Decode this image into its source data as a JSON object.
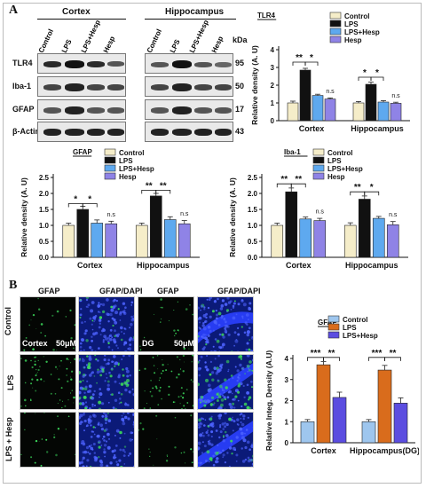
{
  "panel_a_label": "A",
  "panel_b_label": "B",
  "blot": {
    "region_cortex": "Cortex",
    "region_hippo": "Hippocampus",
    "kda_label": "kDa",
    "lanes": [
      "Control",
      "LPS",
      "LPS+Hesp",
      "Hesp"
    ],
    "proteins": [
      "TLR4",
      "Iba-1",
      "GFAP",
      "β-Actin"
    ],
    "sizes": [
      "95",
      "50",
      "17",
      "43"
    ]
  },
  "micro": {
    "col_headers": [
      "GFAP",
      "GFAP/DAPI",
      "GFAP",
      "GFAP/DAPI"
    ],
    "row_labels": [
      "Control",
      "LPS",
      "LPS + Hesp"
    ],
    "cortex_label": "Cortex",
    "dg_label": "DG",
    "scale_1": "50μM",
    "scale_2": "50μM"
  },
  "chart_data": [
    {
      "type": "bar",
      "title": "TLR4",
      "ylabel": "Relative density (A. U)",
      "categories": [
        "Cortex",
        "Hippocampus"
      ],
      "ylim": [
        0,
        4
      ],
      "yticks": [
        "0",
        "1",
        "2",
        "3",
        "4"
      ],
      "series": [
        {
          "name": "Control",
          "color": "#f5edc9",
          "values": [
            1.0,
            1.0
          ],
          "err": [
            0.1,
            0.08
          ]
        },
        {
          "name": "LPS",
          "color": "#111111",
          "values": [
            2.85,
            2.05
          ],
          "err": [
            0.1,
            0.12
          ]
        },
        {
          "name": "LPS+Hesp",
          "color": "#5ea9ef",
          "values": [
            1.42,
            1.05
          ],
          "err": [
            0.07,
            0.08
          ]
        },
        {
          "name": "Hesp",
          "color": "#8f83e6",
          "values": [
            1.22,
            0.98
          ],
          "err": [
            0.06,
            0.06
          ]
        }
      ],
      "annotations": [
        {
          "text": "**",
          "cat": 0,
          "a": 0,
          "b": 1,
          "level": 3.3
        },
        {
          "text": "*",
          "cat": 0,
          "a": 1,
          "b": 2,
          "level": 3.3
        },
        {
          "text": "n.s",
          "cat": 0,
          "a": 3,
          "b": 3,
          "level": 1.45
        },
        {
          "text": "*",
          "cat": 1,
          "a": 0,
          "b": 1,
          "level": 2.45
        },
        {
          "text": "*",
          "cat": 1,
          "a": 1,
          "b": 2,
          "level": 2.45
        },
        {
          "text": "n.s",
          "cat": 1,
          "a": 3,
          "b": 3,
          "level": 1.2
        }
      ]
    },
    {
      "type": "bar",
      "title": "GFAP",
      "ylabel": "Relative density (A. U)",
      "categories": [
        "Cortex",
        "Hippocampus"
      ],
      "ylim": [
        0,
        2.5
      ],
      "yticks": [
        "0.0",
        "0.5",
        "1.0",
        "1.5",
        "2.0",
        "2.5"
      ],
      "series": [
        {
          "name": "Control",
          "color": "#f5edc9",
          "values": [
            1.0,
            1.0
          ],
          "err": [
            0.07,
            0.07
          ]
        },
        {
          "name": "LPS",
          "color": "#111111",
          "values": [
            1.5,
            1.92
          ],
          "err": [
            0.1,
            0.08
          ]
        },
        {
          "name": "LPS+Hesp",
          "color": "#5ea9ef",
          "values": [
            1.07,
            1.18
          ],
          "err": [
            0.1,
            0.09
          ]
        },
        {
          "name": "Hesp",
          "color": "#8f83e6",
          "values": [
            1.05,
            1.05
          ],
          "err": [
            0.08,
            0.1
          ]
        }
      ],
      "annotations": [
        {
          "text": "*",
          "cat": 0,
          "a": 0,
          "b": 1,
          "level": 1.68
        },
        {
          "text": "*",
          "cat": 0,
          "a": 1,
          "b": 2,
          "level": 1.68
        },
        {
          "text": "n.s",
          "cat": 0,
          "a": 3,
          "b": 3,
          "level": 1.22
        },
        {
          "text": "**",
          "cat": 1,
          "a": 0,
          "b": 1,
          "level": 2.1
        },
        {
          "text": "**",
          "cat": 1,
          "a": 1,
          "b": 2,
          "level": 2.1
        },
        {
          "text": "n.s",
          "cat": 1,
          "a": 3,
          "b": 3,
          "level": 1.25
        }
      ]
    },
    {
      "type": "bar",
      "title": "Iba-1",
      "ylabel": "Relative density (A. U)",
      "categories": [
        "Cortex",
        "Hippocampus"
      ],
      "ylim": [
        0,
        2.5
      ],
      "yticks": [
        "0.0",
        "0.5",
        "1.0",
        "1.5",
        "2.0",
        "2.5"
      ],
      "series": [
        {
          "name": "Control",
          "color": "#f5edc9",
          "values": [
            1.0,
            1.0
          ],
          "err": [
            0.07,
            0.08
          ]
        },
        {
          "name": "LPS",
          "color": "#111111",
          "values": [
            2.05,
            1.82
          ],
          "err": [
            0.12,
            0.1
          ]
        },
        {
          "name": "LPS+Hesp",
          "color": "#5ea9ef",
          "values": [
            1.2,
            1.22
          ],
          "err": [
            0.06,
            0.06
          ]
        },
        {
          "name": "Hesp",
          "color": "#8f83e6",
          "values": [
            1.15,
            1.02
          ],
          "err": [
            0.07,
            0.1
          ]
        }
      ],
      "annotations": [
        {
          "text": "**",
          "cat": 0,
          "a": 0,
          "b": 1,
          "level": 2.3
        },
        {
          "text": "**",
          "cat": 0,
          "a": 1,
          "b": 2,
          "level": 2.3
        },
        {
          "text": "n.s",
          "cat": 0,
          "a": 3,
          "b": 3,
          "level": 1.32
        },
        {
          "text": "**",
          "cat": 1,
          "a": 0,
          "b": 1,
          "level": 2.05
        },
        {
          "text": "*",
          "cat": 1,
          "a": 1,
          "b": 2,
          "level": 2.05
        },
        {
          "text": "n.s",
          "cat": 1,
          "a": 3,
          "b": 3,
          "level": 1.22
        }
      ]
    },
    {
      "type": "bar",
      "title": "GFAP",
      "ylabel": "Relative Integ. Density (A.U)",
      "categories": [
        "Cortex",
        "Hippocampus(DG)"
      ],
      "ylim": [
        0,
        4
      ],
      "yticks": [
        "0",
        "1",
        "2",
        "3",
        "4"
      ],
      "series": [
        {
          "name": "Control",
          "color": "#9ec6ee",
          "values": [
            1.0,
            1.0
          ],
          "err": [
            0.1,
            0.1
          ]
        },
        {
          "name": "LPS",
          "color": "#d96c1c",
          "values": [
            3.7,
            3.45
          ],
          "err": [
            0.15,
            0.22
          ]
        },
        {
          "name": "LPS+Hesp",
          "color": "#5b4de0",
          "values": [
            2.15,
            1.88
          ],
          "err": [
            0.25,
            0.25
          ]
        }
      ],
      "annotations": [
        {
          "text": "***",
          "cat": 0,
          "a": 0,
          "b": 1,
          "level": 4.05
        },
        {
          "text": "**",
          "cat": 0,
          "a": 1,
          "b": 2,
          "level": 4.05
        },
        {
          "text": "***",
          "cat": 1,
          "a": 0,
          "b": 1,
          "level": 4.05
        },
        {
          "text": "**",
          "cat": 1,
          "a": 1,
          "b": 2,
          "level": 4.05
        }
      ]
    }
  ]
}
